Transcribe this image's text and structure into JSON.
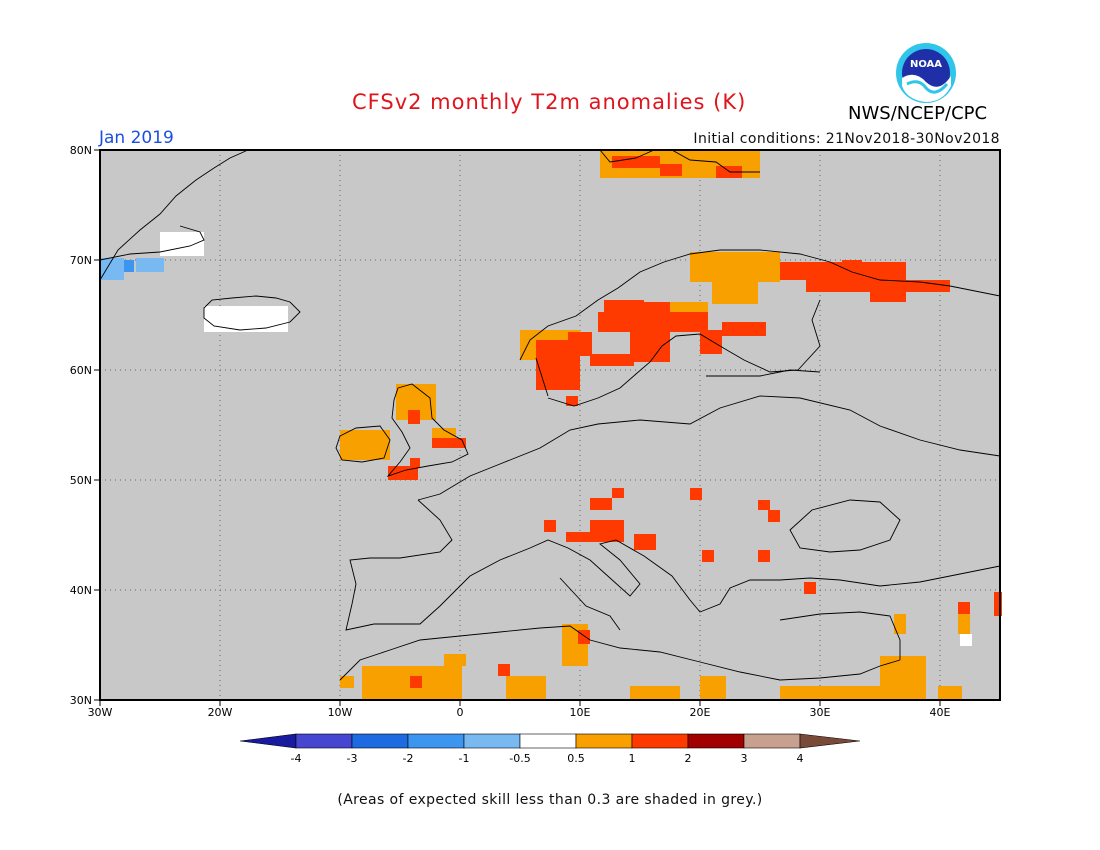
{
  "header": {
    "title": "CFSv2 monthly T2m anomalies (K)",
    "month": "Jan 2019",
    "initial_conditions": "Initial conditions: 21Nov2018-30Nov2018",
    "agency": "NWS/NCEP/CPC",
    "logo_text": "NOAA"
  },
  "map": {
    "region": "Europe",
    "lon_labels": [
      "30W",
      "20W",
      "10W",
      "0",
      "10E",
      "20E",
      "30E",
      "40E"
    ],
    "lat_labels": [
      "80N",
      "70N",
      "60N",
      "50N",
      "40N",
      "30N"
    ],
    "background_color": "#c8c8c8",
    "land_outline_color": "#000000",
    "gridline_style": "dotted"
  },
  "colorbar": {
    "ticks": [
      "-4",
      "-3",
      "-2",
      "-1",
      "-0.5",
      "0.5",
      "1",
      "2",
      "3",
      "4"
    ],
    "colors": [
      "#1a1aa0",
      "#4646d0",
      "#1e6ae0",
      "#3c96f0",
      "#78b9f2",
      "#ffffff",
      "#f7a000",
      "#ff3a00",
      "#a00000",
      "#c8a090",
      "#7a4a38"
    ]
  },
  "footnote": "(Areas of expected skill less than 0.3 are shaded in grey.)"
}
